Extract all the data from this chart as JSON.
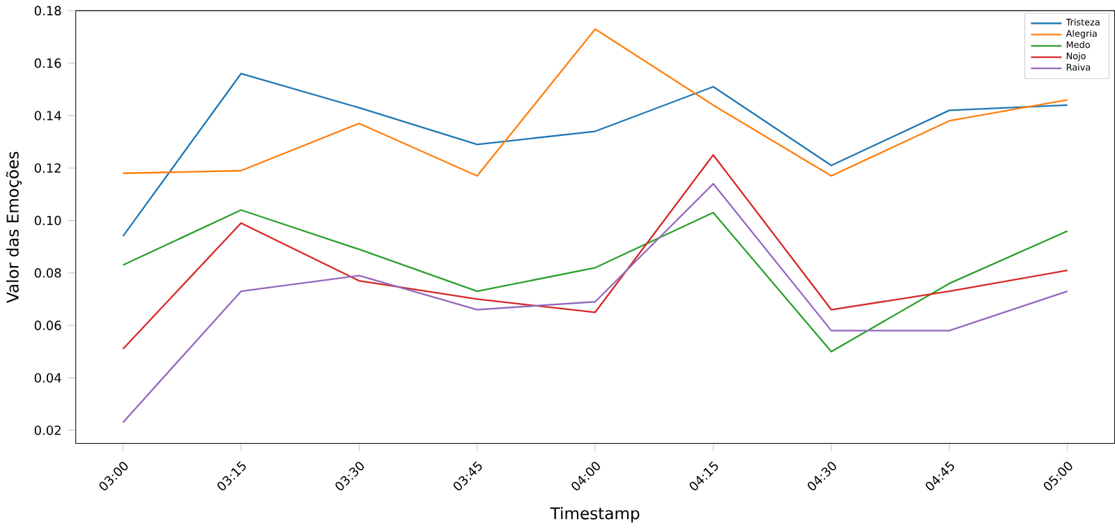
{
  "chart_data": {
    "type": "line",
    "xlabel": "Timestamp",
    "ylabel": "Valor das Emoções",
    "categories": [
      "03:00",
      "03:15",
      "03:30",
      "03:45",
      "04:00",
      "04:15",
      "04:30",
      "04:45",
      "05:00"
    ],
    "series": [
      {
        "name": "Tristeza",
        "color": "#1f77b4",
        "values": [
          0.094,
          0.156,
          0.143,
          0.129,
          0.134,
          0.151,
          0.121,
          0.142,
          0.144
        ]
      },
      {
        "name": "Alegria",
        "color": "#ff7f0e",
        "values": [
          0.118,
          0.119,
          0.137,
          0.117,
          0.173,
          0.144,
          0.117,
          0.138,
          0.146
        ]
      },
      {
        "name": "Medo",
        "color": "#2ca02c",
        "values": [
          0.083,
          0.104,
          0.089,
          0.073,
          0.082,
          0.103,
          0.05,
          0.076,
          0.096
        ]
      },
      {
        "name": "Nojo",
        "color": "#d62728",
        "values": [
          0.051,
          0.099,
          0.077,
          0.07,
          0.065,
          0.125,
          0.066,
          0.073,
          0.081
        ]
      },
      {
        "name": "Raiva",
        "color": "#9467bd",
        "values": [
          0.023,
          0.073,
          0.079,
          0.066,
          0.069,
          0.114,
          0.058,
          0.058,
          0.073
        ]
      }
    ],
    "ylim": [
      0.015,
      0.18
    ],
    "yticks": [
      0.02,
      0.04,
      0.06,
      0.08,
      {
        "value": 0.1,
        "label": "0.10"
      },
      0.12,
      0.14,
      0.16,
      0.18
    ],
    "legend": "top right",
    "grid": false,
    "marker": "none",
    "line_style": "solid"
  }
}
